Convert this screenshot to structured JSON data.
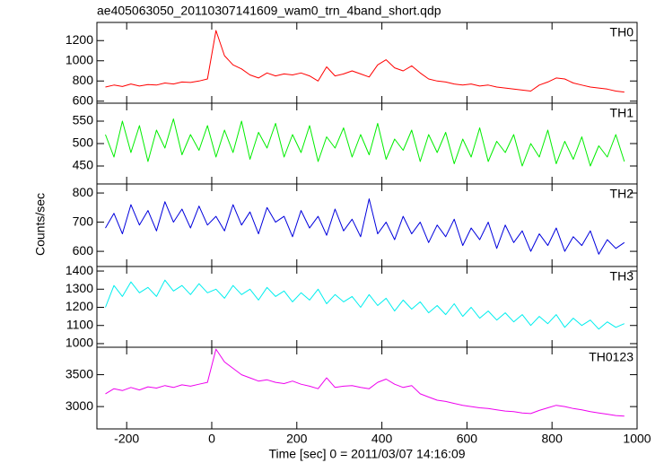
{
  "chart_data": {
    "type": "line",
    "title": "ae405063050_20110307141609_wam0_trn_4band_short.qdp",
    "xlabel": "Time [sec] 0 = 2011/03/07 14:16:09",
    "ylabel": "Counts/sec",
    "xlim": [
      -270,
      1000
    ],
    "xticks": [
      -200,
      0,
      200,
      400,
      600,
      800,
      1000
    ],
    "x": [
      -250,
      -230,
      -210,
      -190,
      -170,
      -150,
      -130,
      -110,
      -90,
      -70,
      -50,
      -30,
      -10,
      10,
      30,
      50,
      70,
      90,
      110,
      130,
      150,
      170,
      190,
      210,
      230,
      250,
      270,
      290,
      310,
      330,
      350,
      370,
      390,
      410,
      430,
      450,
      470,
      490,
      510,
      530,
      550,
      570,
      590,
      610,
      630,
      650,
      670,
      690,
      710,
      730,
      750,
      770,
      790,
      810,
      830,
      850,
      870,
      890,
      910,
      930,
      950,
      970
    ],
    "series": [
      {
        "name": "TH0",
        "color": "#ff0000",
        "ylim": [
          580,
          1380
        ],
        "yticks": [
          600,
          800,
          1000,
          1200
        ],
        "values": [
          740,
          760,
          745,
          770,
          750,
          765,
          760,
          780,
          770,
          790,
          785,
          800,
          820,
          1300,
          1050,
          960,
          920,
          860,
          830,
          880,
          850,
          870,
          860,
          880,
          850,
          800,
          940,
          850,
          870,
          900,
          870,
          840,
          960,
          1010,
          930,
          900,
          950,
          880,
          820,
          800,
          790,
          770,
          760,
          770,
          750,
          760,
          740,
          730,
          720,
          710,
          700,
          760,
          790,
          830,
          820,
          780,
          760,
          740,
          730,
          720,
          700,
          690
        ]
      },
      {
        "name": "TH1",
        "color": "#00ee00",
        "ylim": [
          410,
          590
        ],
        "yticks": [
          450,
          500,
          550
        ],
        "values": [
          520,
          470,
          550,
          480,
          540,
          460,
          530,
          490,
          555,
          475,
          520,
          485,
          540,
          470,
          530,
          480,
          550,
          465,
          525,
          490,
          545,
          470,
          520,
          480,
          540,
          460,
          515,
          490,
          535,
          470,
          520,
          475,
          545,
          465,
          510,
          485,
          530,
          460,
          520,
          480,
          525,
          455,
          510,
          470,
          535,
          460,
          505,
          480,
          520,
          450,
          500,
          470,
          530,
          455,
          505,
          465,
          515,
          450,
          495,
          470,
          520,
          460
        ]
      },
      {
        "name": "TH2",
        "color": "#0000dd",
        "ylim": [
          548,
          831
        ],
        "yticks": [
          600,
          700,
          800
        ],
        "values": [
          680,
          730,
          660,
          760,
          690,
          740,
          670,
          770,
          700,
          745,
          680,
          755,
          690,
          720,
          670,
          760,
          690,
          735,
          660,
          750,
          700,
          720,
          650,
          740,
          680,
          720,
          655,
          745,
          670,
          710,
          650,
          780,
          660,
          700,
          640,
          720,
          660,
          700,
          630,
          690,
          650,
          710,
          620,
          680,
          640,
          700,
          610,
          690,
          630,
          670,
          600,
          660,
          620,
          680,
          600,
          650,
          620,
          670,
          590,
          640,
          610,
          630
        ]
      },
      {
        "name": "TH3",
        "color": "#00eeee",
        "ylim": [
          980,
          1425
        ],
        "yticks": [
          1000,
          1100,
          1200,
          1300,
          1400
        ],
        "values": [
          1200,
          1320,
          1260,
          1340,
          1280,
          1310,
          1260,
          1350,
          1290,
          1320,
          1270,
          1330,
          1280,
          1300,
          1250,
          1320,
          1270,
          1300,
          1240,
          1310,
          1260,
          1290,
          1230,
          1280,
          1240,
          1300,
          1220,
          1270,
          1230,
          1260,
          1200,
          1270,
          1210,
          1250,
          1180,
          1240,
          1190,
          1230,
          1170,
          1210,
          1160,
          1220,
          1150,
          1200,
          1140,
          1180,
          1130,
          1170,
          1120,
          1160,
          1100,
          1150,
          1110,
          1160,
          1090,
          1140,
          1100,
          1130,
          1080,
          1120,
          1090,
          1110
        ]
      },
      {
        "name": "TH0123",
        "color": "#ee00ee",
        "ylim": [
          2650,
          3930
        ],
        "yticks": [
          3000,
          3500
        ],
        "values": [
          3200,
          3280,
          3250,
          3300,
          3260,
          3310,
          3290,
          3330,
          3300,
          3340,
          3320,
          3350,
          3380,
          3900,
          3700,
          3600,
          3500,
          3450,
          3400,
          3420,
          3380,
          3360,
          3400,
          3350,
          3320,
          3280,
          3450,
          3300,
          3320,
          3330,
          3300,
          3280,
          3380,
          3430,
          3350,
          3300,
          3330,
          3200,
          3150,
          3100,
          3080,
          3050,
          3020,
          3000,
          2980,
          2970,
          2950,
          2930,
          2920,
          2900,
          2890,
          2940,
          2980,
          3020,
          3000,
          2970,
          2950,
          2920,
          2900,
          2880,
          2860,
          2850
        ]
      }
    ]
  }
}
